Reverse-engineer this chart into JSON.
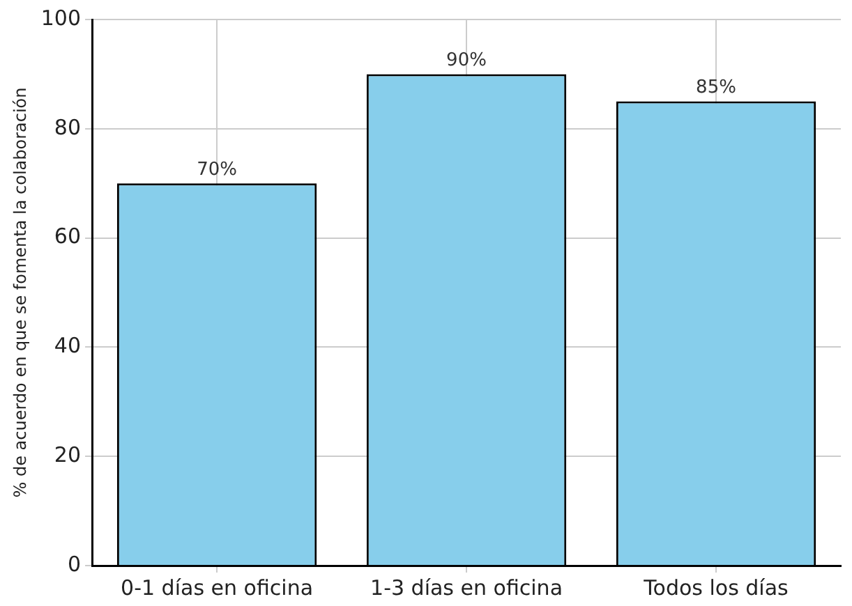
{
  "chart_data": {
    "type": "bar",
    "ylabel": "% de acuerdo en que se fomenta la colaboración",
    "categories": [
      "0-1 días en oficina",
      "1-3 días en oficina",
      "Todos los días"
    ],
    "values": [
      70,
      90,
      85
    ],
    "color": "#87ceeb",
    "value_labels": [
      "70%",
      "90%",
      "85%"
    ],
    "ylim": [
      0,
      100
    ],
    "yticks": [
      0,
      20,
      40,
      60,
      80,
      100
    ],
    "grid": true,
    "legend": false
  }
}
